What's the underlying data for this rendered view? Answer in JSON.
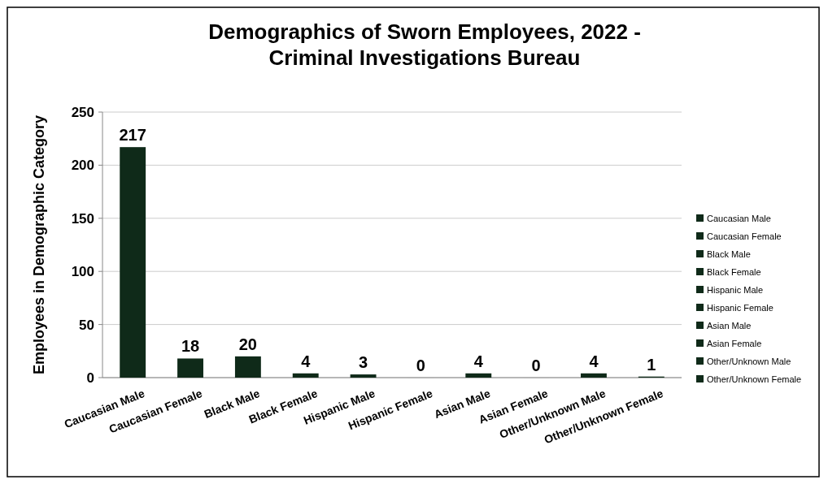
{
  "chart_data": {
    "type": "bar",
    "title": "Demographics of Sworn Employees, 2022 -\nCriminal Investigations Bureau",
    "ylabel": "Employees in Demographic Category",
    "categories": [
      "Caucasian Male",
      "Caucasian Female",
      "Black Male",
      "Black Female",
      "Hispanic Male",
      "Hispanic Female",
      "Asian Male",
      "Asian Female",
      "Other/Unknown Male",
      "Other/Unknown Female"
    ],
    "series": [
      {
        "name": "Caucasian Male",
        "color": "#0f2a19",
        "values": [
          217,
          null,
          null,
          null,
          null,
          null,
          null,
          null,
          null,
          null
        ]
      },
      {
        "name": "Caucasian Female",
        "color": "#0f2a19",
        "values": [
          null,
          18,
          null,
          null,
          null,
          null,
          null,
          null,
          null,
          null
        ]
      },
      {
        "name": "Black Male",
        "color": "#0f2a19",
        "values": [
          null,
          null,
          20,
          null,
          null,
          null,
          null,
          null,
          null,
          null
        ]
      },
      {
        "name": "Black Female",
        "color": "#0f2a19",
        "values": [
          null,
          null,
          null,
          4,
          null,
          null,
          null,
          null,
          null,
          null
        ]
      },
      {
        "name": "Hispanic Male",
        "color": "#0f2a19",
        "values": [
          null,
          null,
          null,
          null,
          3,
          null,
          null,
          null,
          null,
          null
        ]
      },
      {
        "name": "Hispanic Female",
        "color": "#0f2a19",
        "values": [
          null,
          null,
          null,
          null,
          null,
          0,
          null,
          null,
          null,
          null
        ]
      },
      {
        "name": "Asian Male",
        "color": "#0f2a19",
        "values": [
          null,
          null,
          null,
          null,
          null,
          null,
          4,
          null,
          null,
          null
        ]
      },
      {
        "name": "Asian Female",
        "color": "#0f2a19",
        "values": [
          null,
          null,
          null,
          null,
          null,
          null,
          null,
          0,
          null,
          null
        ]
      },
      {
        "name": "Other/Unknown Male",
        "color": "#0f2a19",
        "values": [
          null,
          null,
          null,
          null,
          null,
          null,
          null,
          null,
          4,
          null
        ]
      },
      {
        "name": "Other/Unknown Female",
        "color": "#0f2a19",
        "values": [
          null,
          null,
          null,
          null,
          null,
          null,
          null,
          null,
          null,
          1
        ]
      }
    ],
    "ylim": [
      0,
      250
    ],
    "yticks": [
      0,
      50,
      100,
      150,
      200,
      250
    ],
    "grid": "y",
    "data_labels": true,
    "legend": "right"
  }
}
